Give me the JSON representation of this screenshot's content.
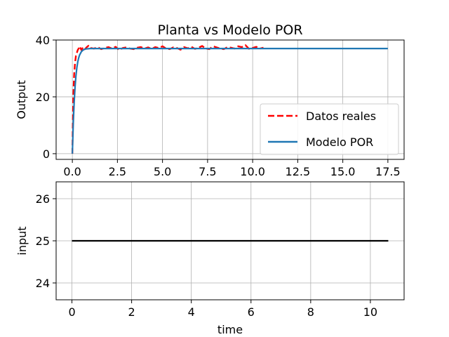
{
  "chart_data": [
    {
      "type": "line",
      "title": "Planta vs Modelo POR",
      "xlabel": "",
      "ylabel": "Output",
      "xlim": [
        -0.9,
        18.4
      ],
      "ylim": [
        -2,
        40
      ],
      "xticks": [
        0.0,
        2.5,
        5.0,
        7.5,
        10.0,
        12.5,
        15.0,
        17.5
      ],
      "xtick_labels": [
        "0.0",
        "2.5",
        "5.0",
        "7.5",
        "10.0",
        "12.5",
        "15.0",
        "17.5"
      ],
      "yticks": [
        0,
        20,
        40
      ],
      "ytick_labels": [
        "0",
        "20",
        "40"
      ],
      "grid": true,
      "legend": "lower-right",
      "series": [
        {
          "name": "Datos reales",
          "color": "#ff0000",
          "style": "dashed",
          "x": [
            0.0,
            0.05,
            0.1,
            0.15,
            0.2,
            0.25,
            0.3,
            0.35,
            0.4,
            0.5,
            0.6,
            0.7,
            0.8,
            0.9,
            1.0,
            1.2,
            1.4,
            1.6,
            1.8,
            2.0,
            2.2,
            2.4,
            2.6,
            2.8,
            3.0,
            3.2,
            3.4,
            3.6,
            3.8,
            4.0,
            4.2,
            4.4,
            4.6,
            4.8,
            5.0,
            5.2,
            5.4,
            5.6,
            5.8,
            6.0,
            6.2,
            6.4,
            6.6,
            6.8,
            7.0,
            7.2,
            7.4,
            7.6,
            7.8,
            8.0,
            8.2,
            8.4,
            8.6,
            8.8,
            9.0,
            9.2,
            9.4,
            9.6,
            9.8,
            10.0,
            10.2,
            10.4,
            10.6
          ],
          "y": [
            0.0,
            20.0,
            28.0,
            32.0,
            34.5,
            35.5,
            36.5,
            37.0,
            37.8,
            36.5,
            37.5,
            36.8,
            37.5,
            38.0,
            37.2,
            37.0,
            37.5,
            36.8,
            37.2,
            37.5,
            37.0,
            37.6,
            36.5,
            37.2,
            37.4,
            37.0,
            36.8,
            37.3,
            37.5,
            37.0,
            37.4,
            36.9,
            37.5,
            37.2,
            37.8,
            37.0,
            36.8,
            37.4,
            37.2,
            36.6,
            37.5,
            37.1,
            37.6,
            36.9,
            37.3,
            37.9,
            37.0,
            36.8,
            37.8,
            37.4,
            37.0,
            36.8,
            37.5,
            37.3,
            37.0,
            37.8,
            37.5,
            38.2,
            36.9,
            37.2,
            37.6,
            37.0,
            37.3
          ]
        },
        {
          "name": "Modelo POR",
          "color": "#1f77b4",
          "style": "solid",
          "x": [
            0.0,
            0.05,
            0.1,
            0.15,
            0.2,
            0.25,
            0.3,
            0.35,
            0.4,
            0.5,
            0.6,
            0.7,
            0.8,
            0.9,
            1.0,
            1.2,
            1.5,
            2.0,
            3.0,
            5.0,
            10.0,
            17.5
          ],
          "y": [
            0.0,
            10.5,
            18.0,
            23.5,
            27.5,
            30.3,
            32.3,
            33.7,
            34.7,
            35.9,
            36.5,
            36.8,
            36.9,
            36.95,
            37.0,
            37.0,
            37.0,
            37.0,
            37.0,
            37.0,
            37.0,
            37.0
          ]
        }
      ]
    },
    {
      "type": "line",
      "title": "",
      "xlabel": "time",
      "ylabel": "input",
      "xlim": [
        -0.53,
        11.13
      ],
      "ylim": [
        23.6,
        26.4
      ],
      "xticks": [
        0,
        2,
        4,
        6,
        8,
        10
      ],
      "xtick_labels": [
        "0",
        "2",
        "4",
        "6",
        "8",
        "10"
      ],
      "yticks": [
        24,
        25,
        26
      ],
      "ytick_labels": [
        "24",
        "25",
        "26"
      ],
      "grid": true,
      "series": [
        {
          "color": "#000000",
          "style": "solid",
          "x": [
            0.0,
            10.6
          ],
          "y": [
            25.0,
            25.0
          ]
        }
      ]
    }
  ]
}
